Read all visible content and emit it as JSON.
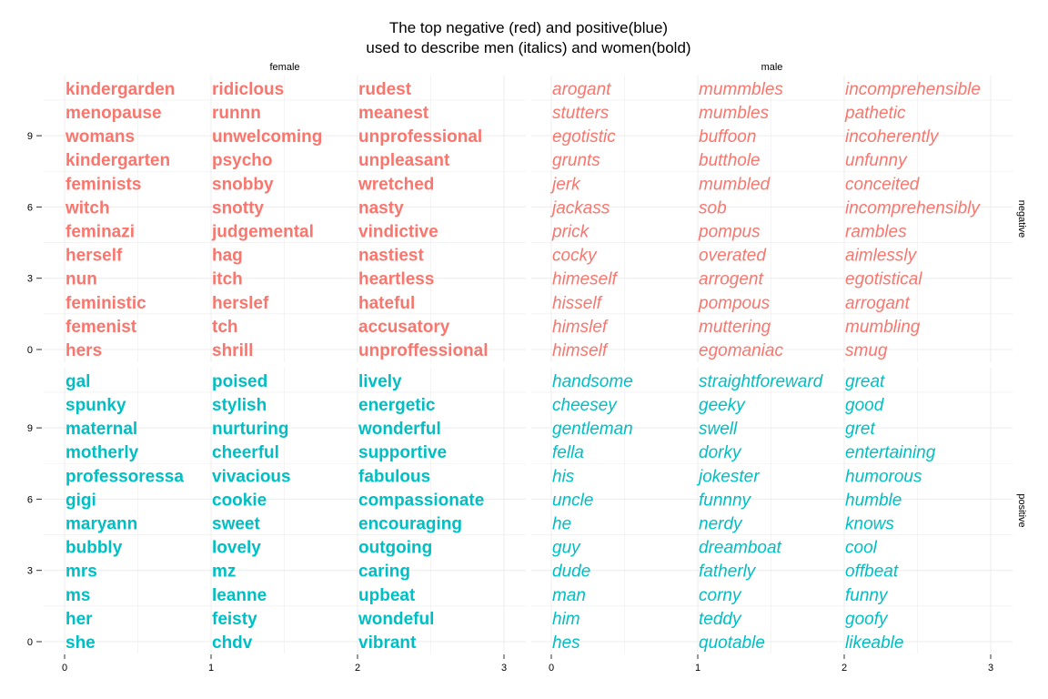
{
  "chart_data": {
    "type": "text-scatter",
    "title_lines": [
      "The top negative (red) and positive(blue)",
      "used to describe men (italics) and women(bold)"
    ],
    "col_facets": [
      "female",
      "male"
    ],
    "row_facets": [
      "negative",
      "positive"
    ],
    "xlim": [
      0,
      3
    ],
    "ylim": [
      0,
      11
    ],
    "x_ticks": [
      0,
      1,
      2,
      3
    ],
    "y_ticks": [
      0,
      3,
      6,
      9
    ],
    "grid": true,
    "colors": {
      "negative": "#f8766d",
      "positive": "#00bfc4"
    },
    "panels": [
      {
        "gender": "female",
        "sentiment": "negative",
        "style": "bold",
        "columns": [
          [
            "hers",
            "femenist",
            "feministic",
            "nun",
            "herself",
            "feminazi",
            "witch",
            "feminists",
            "kindergarten",
            "womans",
            "menopause",
            "kindergarden"
          ],
          [
            "shrill",
            "tch",
            "herslef",
            "itch",
            "hag",
            "judgemental",
            "snotty",
            "snobby",
            "psycho",
            "unwelcoming",
            "runnn",
            "ridiclous"
          ],
          [
            "unproffessional",
            "accusatory",
            "hateful",
            "heartless",
            "nastiest",
            "vindictive",
            "nasty",
            "wretched",
            "unpleasant",
            "unprofessional",
            "meanest",
            "rudest"
          ]
        ]
      },
      {
        "gender": "male",
        "sentiment": "negative",
        "style": "italic",
        "columns": [
          [
            "himself",
            "himslef",
            "hisself",
            "himeself",
            "cocky",
            "prick",
            "jackass",
            "jerk",
            "grunts",
            "egotistic",
            "stutters",
            "arogant"
          ],
          [
            "egomaniac",
            "muttering",
            "pompous",
            "arrogent",
            "overated",
            "pompus",
            "sob",
            "mumbled",
            "butthole",
            "buffoon",
            "mumbles",
            "mummbles"
          ],
          [
            "smug",
            "mumbling",
            "arrogant",
            "egotistical",
            "aimlessly",
            "rambles",
            "incomprehensibly",
            "conceited",
            "unfunny",
            "incoherently",
            "pathetic",
            "incomprehensible"
          ]
        ]
      },
      {
        "gender": "female",
        "sentiment": "positive",
        "style": "bold",
        "columns": [
          [
            "she",
            "her",
            "ms",
            "mrs",
            "bubbly",
            "maryann",
            "gigi",
            "professoressa",
            "motherly",
            "maternal",
            "spunky",
            "gal"
          ],
          [
            "chdv",
            "feisty",
            "leanne",
            "mz",
            "lovely",
            "sweet",
            "cookie",
            "vivacious",
            "cheerful",
            "nurturing",
            "stylish",
            "poised"
          ],
          [
            "vibrant",
            "wondeful",
            "upbeat",
            "caring",
            "outgoing",
            "encouraging",
            "compassionate",
            "fabulous",
            "supportive",
            "wonderful",
            "energetic",
            "lively"
          ]
        ]
      },
      {
        "gender": "male",
        "sentiment": "positive",
        "style": "italic",
        "columns": [
          [
            "hes",
            "him",
            "man",
            "dude",
            "guy",
            "he",
            "uncle",
            "his",
            "fella",
            "gentleman",
            "cheesey",
            "handsome"
          ],
          [
            "quotable",
            "teddy",
            "corny",
            "fatherly",
            "dreamboat",
            "nerdy",
            "funnny",
            "jokester",
            "dorky",
            "swell",
            "geeky",
            "straightforeward"
          ],
          [
            "likeable",
            "goofy",
            "funny",
            "offbeat",
            "cool",
            "knows",
            "humble",
            "humorous",
            "entertaining",
            "gret",
            "good",
            "great"
          ]
        ]
      }
    ]
  }
}
